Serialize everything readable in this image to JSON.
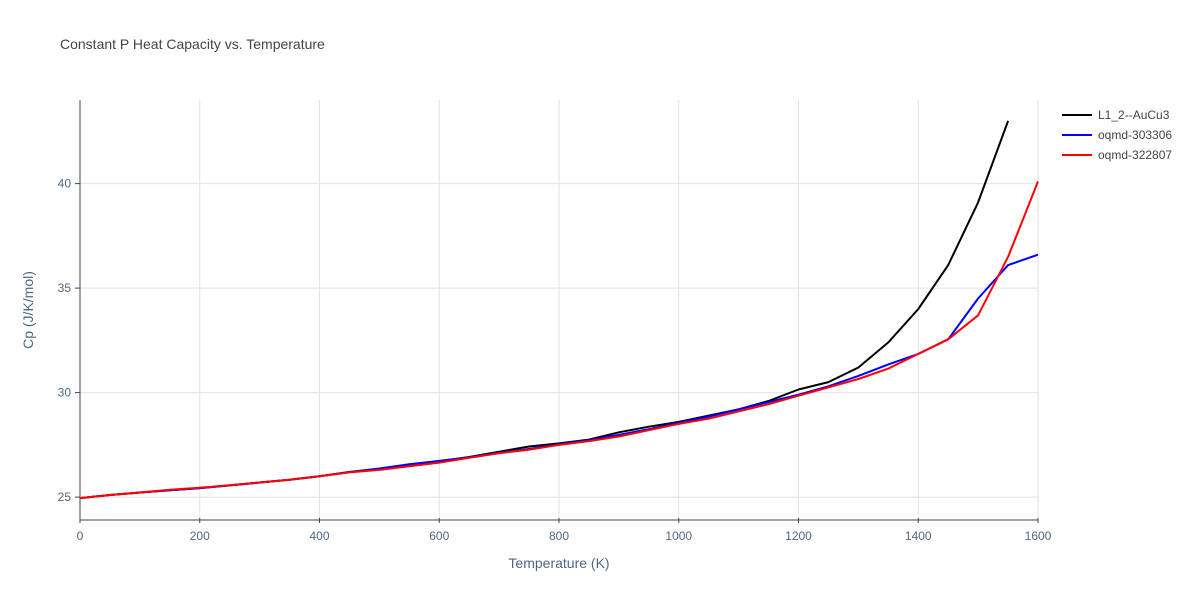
{
  "chart_data": {
    "type": "line",
    "title": "Constant P Heat Capacity vs. Temperature",
    "xlabel": "Temperature (K)",
    "ylabel": "Cp (J/K/mol)",
    "xlim": [
      0,
      1600
    ],
    "ylim": [
      24,
      44
    ],
    "xticks": [
      0,
      200,
      400,
      600,
      800,
      1000,
      1200,
      1400,
      1600
    ],
    "yticks": [
      25,
      30,
      35,
      40
    ],
    "grid": true,
    "legend_position": "top-right",
    "series": [
      {
        "name": "L1_2--AuCu3",
        "color": "#000000",
        "x": [
          0,
          50,
          100,
          150,
          200,
          250,
          300,
          350,
          400,
          450,
          500,
          550,
          600,
          650,
          700,
          750,
          800,
          850,
          900,
          950,
          1000,
          1050,
          1100,
          1150,
          1200,
          1250,
          1300,
          1350,
          1400,
          1450,
          1500,
          1550
        ],
        "y": [
          24.95,
          25.1,
          25.22,
          25.33,
          25.43,
          25.56,
          25.7,
          25.83,
          26.0,
          26.2,
          26.35,
          26.55,
          26.72,
          26.92,
          27.17,
          27.42,
          27.57,
          27.75,
          28.1,
          28.37,
          28.6,
          28.9,
          29.2,
          29.6,
          30.15,
          30.5,
          31.2,
          32.4,
          34.0,
          36.1,
          39.1,
          43.0
        ]
      },
      {
        "name": "oqmd-303306",
        "color": "#0000ff",
        "x": [
          0,
          50,
          100,
          150,
          200,
          250,
          300,
          350,
          400,
          450,
          500,
          550,
          600,
          650,
          700,
          750,
          800,
          850,
          900,
          950,
          1000,
          1050,
          1100,
          1150,
          1200,
          1250,
          1300,
          1350,
          1400,
          1450,
          1500,
          1550,
          1600
        ],
        "y": [
          24.95,
          25.1,
          25.22,
          25.33,
          25.43,
          25.56,
          25.7,
          25.83,
          26.0,
          26.2,
          26.37,
          26.57,
          26.73,
          26.9,
          27.12,
          27.3,
          27.52,
          27.72,
          27.98,
          28.25,
          28.55,
          28.85,
          29.2,
          29.55,
          29.9,
          30.3,
          30.8,
          31.35,
          31.85,
          32.55,
          34.5,
          36.1,
          36.6
        ]
      },
      {
        "name": "oqmd-322807",
        "color": "#ff0000",
        "x": [
          0,
          50,
          100,
          150,
          200,
          250,
          300,
          350,
          400,
          450,
          500,
          550,
          600,
          650,
          700,
          750,
          800,
          850,
          900,
          950,
          1000,
          1050,
          1100,
          1150,
          1200,
          1250,
          1300,
          1350,
          1400,
          1450,
          1500,
          1550,
          1600
        ],
        "y": [
          24.95,
          25.1,
          25.22,
          25.35,
          25.45,
          25.57,
          25.7,
          25.83,
          26.0,
          26.18,
          26.3,
          26.48,
          26.65,
          26.88,
          27.1,
          27.27,
          27.5,
          27.68,
          27.9,
          28.2,
          28.5,
          28.75,
          29.1,
          29.45,
          29.85,
          30.25,
          30.65,
          31.15,
          31.85,
          32.55,
          33.7,
          36.5,
          40.1
        ]
      }
    ]
  }
}
